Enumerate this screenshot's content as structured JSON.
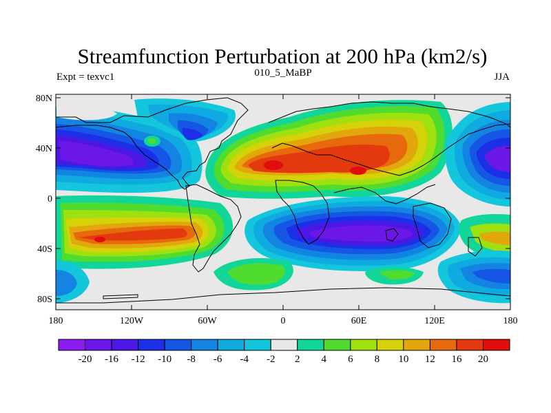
{
  "title": "Streamfunction Perturbation at 200 hPa (km2/s)",
  "left_label": "Expt = texvc1",
  "center_label": "010_5_MaBP",
  "right_label": "JJA",
  "lat_ticks": [
    "80N",
    "40N",
    "0",
    "40S",
    "80S"
  ],
  "lon_ticks": [
    "180",
    "120W",
    "60W",
    "0",
    "60E",
    "120E",
    "180"
  ],
  "colorbar": {
    "labels": [
      "-20",
      "-16",
      "-12",
      "-10",
      "-8",
      "-6",
      "-4",
      "-2",
      "2",
      "4",
      "6",
      "8",
      "10",
      "12",
      "16",
      "20"
    ],
    "colors": [
      "#8a1cf0",
      "#6a17e8",
      "#4a18e2",
      "#1c2fe6",
      "#1556e4",
      "#1384e2",
      "#0faae0",
      "#13c6dc",
      "#e8e8e8",
      "#12d59a",
      "#4fdc2e",
      "#9ee010",
      "#d6d20a",
      "#e2a70c",
      "#e66a0c",
      "#e23a0e",
      "#e00d0d"
    ]
  },
  "colors": {
    "background": "#ffffff",
    "map_background": "#e8e8e8",
    "coastline": "#000000"
  }
}
